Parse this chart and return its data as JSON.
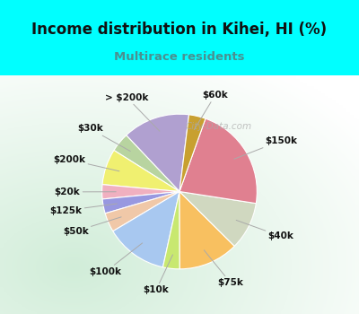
{
  "title": "Income distribution in Kihei, HI (%)",
  "subtitle": "Multirace residents",
  "watermark": "City-Data.com",
  "bg_cyan": "#00FFFF",
  "slices": [
    {
      "label": "> $200k",
      "value": 14.0,
      "color": "#b0a0d0"
    },
    {
      "label": "$30k",
      "value": 4.0,
      "color": "#b8d4a0"
    },
    {
      "label": "$200k",
      "value": 7.5,
      "color": "#f0f070"
    },
    {
      "label": "$20k",
      "value": 3.0,
      "color": "#f0b0c0"
    },
    {
      "label": "$125k",
      "value": 3.0,
      "color": "#9898e0"
    },
    {
      "label": "$50k",
      "value": 4.0,
      "color": "#f0c8a8"
    },
    {
      "label": "$100k",
      "value": 13.0,
      "color": "#a8c8f0"
    },
    {
      "label": "$10k",
      "value": 3.5,
      "color": "#c8e870"
    },
    {
      "label": "$75k",
      "value": 12.5,
      "color": "#f8c060"
    },
    {
      "label": "$40k",
      "value": 10.0,
      "color": "#d0d8c0"
    },
    {
      "label": "$150k",
      "value": 22.0,
      "color": "#e08090"
    },
    {
      "label": "$60k",
      "value": 3.5,
      "color": "#c8a030"
    }
  ],
  "label_fontsize": 7.5,
  "title_fontsize": 12,
  "subtitle_fontsize": 9.5,
  "title_color": "#111111",
  "subtitle_color": "#4a9090",
  "startangle": 83
}
